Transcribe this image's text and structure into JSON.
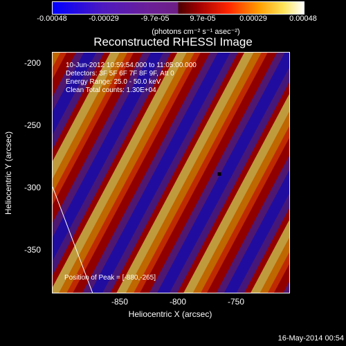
{
  "colorbar": {
    "ticks": [
      "-0.00048",
      "-0.00029",
      "-9.7e-05",
      "9.7e-05",
      "0.00029",
      "0.00048"
    ],
    "unit": "(photons cm⁻² s⁻¹ asec⁻²)"
  },
  "title": "Reconstructed RHESSI Image",
  "overlay": {
    "line1": "10-Jun-2012 10:59:54.000 to 11:05:00.000",
    "line2": "Detectors: 3F 5F 6F 7F 8F 9F, Att 0",
    "line3": "Energy Range: 25.0 - 50.0 keV",
    "line4": "Clean    Total counts: 1.30E+04",
    "peak": "Position of Peak = [-880,-265]"
  },
  "axes": {
    "x_label": "Heliocentric X (arcsec)",
    "y_label": "Heliocentric Y (arcsec)",
    "x_ticks": [
      "-850",
      "-800",
      "-750"
    ],
    "y_ticks": [
      "-200",
      "-250",
      "-300",
      "-350"
    ]
  },
  "footer": {
    "timestamp": "16-May-2014 00:54"
  }
}
